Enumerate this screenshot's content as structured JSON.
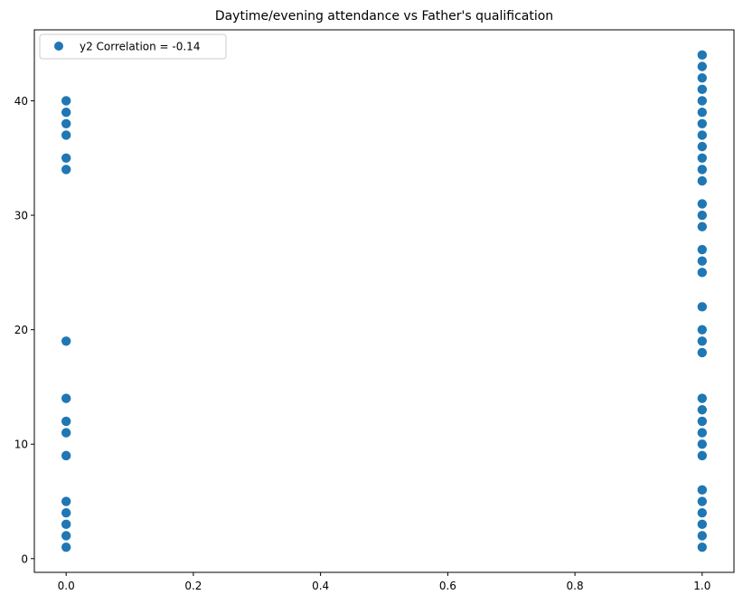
{
  "chart_data": {
    "type": "scatter",
    "title": "Daytime/evening attendance\t vs Father's qualification",
    "xlabel": "",
    "ylabel": "",
    "xlim": [
      -0.05,
      1.05
    ],
    "ylim": [
      -1.2,
      46.2
    ],
    "x_ticks": [
      0.0,
      0.2,
      0.4,
      0.6,
      0.8,
      1.0
    ],
    "x_tick_labels": [
      "0.0",
      "0.2",
      "0.4",
      "0.6",
      "0.8",
      "1.0"
    ],
    "y_ticks": [
      0,
      10,
      20,
      30,
      40
    ],
    "y_tick_labels": [
      "0",
      "10",
      "20",
      "30",
      "40"
    ],
    "grid": false,
    "legend_position": "top-left",
    "marker_color": "#1f77b4",
    "series": [
      {
        "name": "y2 Correlation = -0.14",
        "points": [
          {
            "x": 0,
            "y": 1
          },
          {
            "x": 0,
            "y": 2
          },
          {
            "x": 0,
            "y": 3
          },
          {
            "x": 0,
            "y": 4
          },
          {
            "x": 0,
            "y": 5
          },
          {
            "x": 0,
            "y": 9
          },
          {
            "x": 0,
            "y": 11
          },
          {
            "x": 0,
            "y": 12
          },
          {
            "x": 0,
            "y": 14
          },
          {
            "x": 0,
            "y": 19
          },
          {
            "x": 0,
            "y": 34
          },
          {
            "x": 0,
            "y": 35
          },
          {
            "x": 0,
            "y": 37
          },
          {
            "x": 0,
            "y": 38
          },
          {
            "x": 0,
            "y": 39
          },
          {
            "x": 0,
            "y": 40
          },
          {
            "x": 1,
            "y": 1
          },
          {
            "x": 1,
            "y": 2
          },
          {
            "x": 1,
            "y": 3
          },
          {
            "x": 1,
            "y": 4
          },
          {
            "x": 1,
            "y": 5
          },
          {
            "x": 1,
            "y": 6
          },
          {
            "x": 1,
            "y": 9
          },
          {
            "x": 1,
            "y": 10
          },
          {
            "x": 1,
            "y": 11
          },
          {
            "x": 1,
            "y": 12
          },
          {
            "x": 1,
            "y": 13
          },
          {
            "x": 1,
            "y": 14
          },
          {
            "x": 1,
            "y": 18
          },
          {
            "x": 1,
            "y": 19
          },
          {
            "x": 1,
            "y": 20
          },
          {
            "x": 1,
            "y": 22
          },
          {
            "x": 1,
            "y": 25
          },
          {
            "x": 1,
            "y": 26
          },
          {
            "x": 1,
            "y": 27
          },
          {
            "x": 1,
            "y": 29
          },
          {
            "x": 1,
            "y": 30
          },
          {
            "x": 1,
            "y": 31
          },
          {
            "x": 1,
            "y": 33
          },
          {
            "x": 1,
            "y": 34
          },
          {
            "x": 1,
            "y": 35
          },
          {
            "x": 1,
            "y": 36
          },
          {
            "x": 1,
            "y": 37
          },
          {
            "x": 1,
            "y": 38
          },
          {
            "x": 1,
            "y": 39
          },
          {
            "x": 1,
            "y": 40
          },
          {
            "x": 1,
            "y": 41
          },
          {
            "x": 1,
            "y": 42
          },
          {
            "x": 1,
            "y": 43
          },
          {
            "x": 1,
            "y": 44
          }
        ]
      }
    ]
  }
}
